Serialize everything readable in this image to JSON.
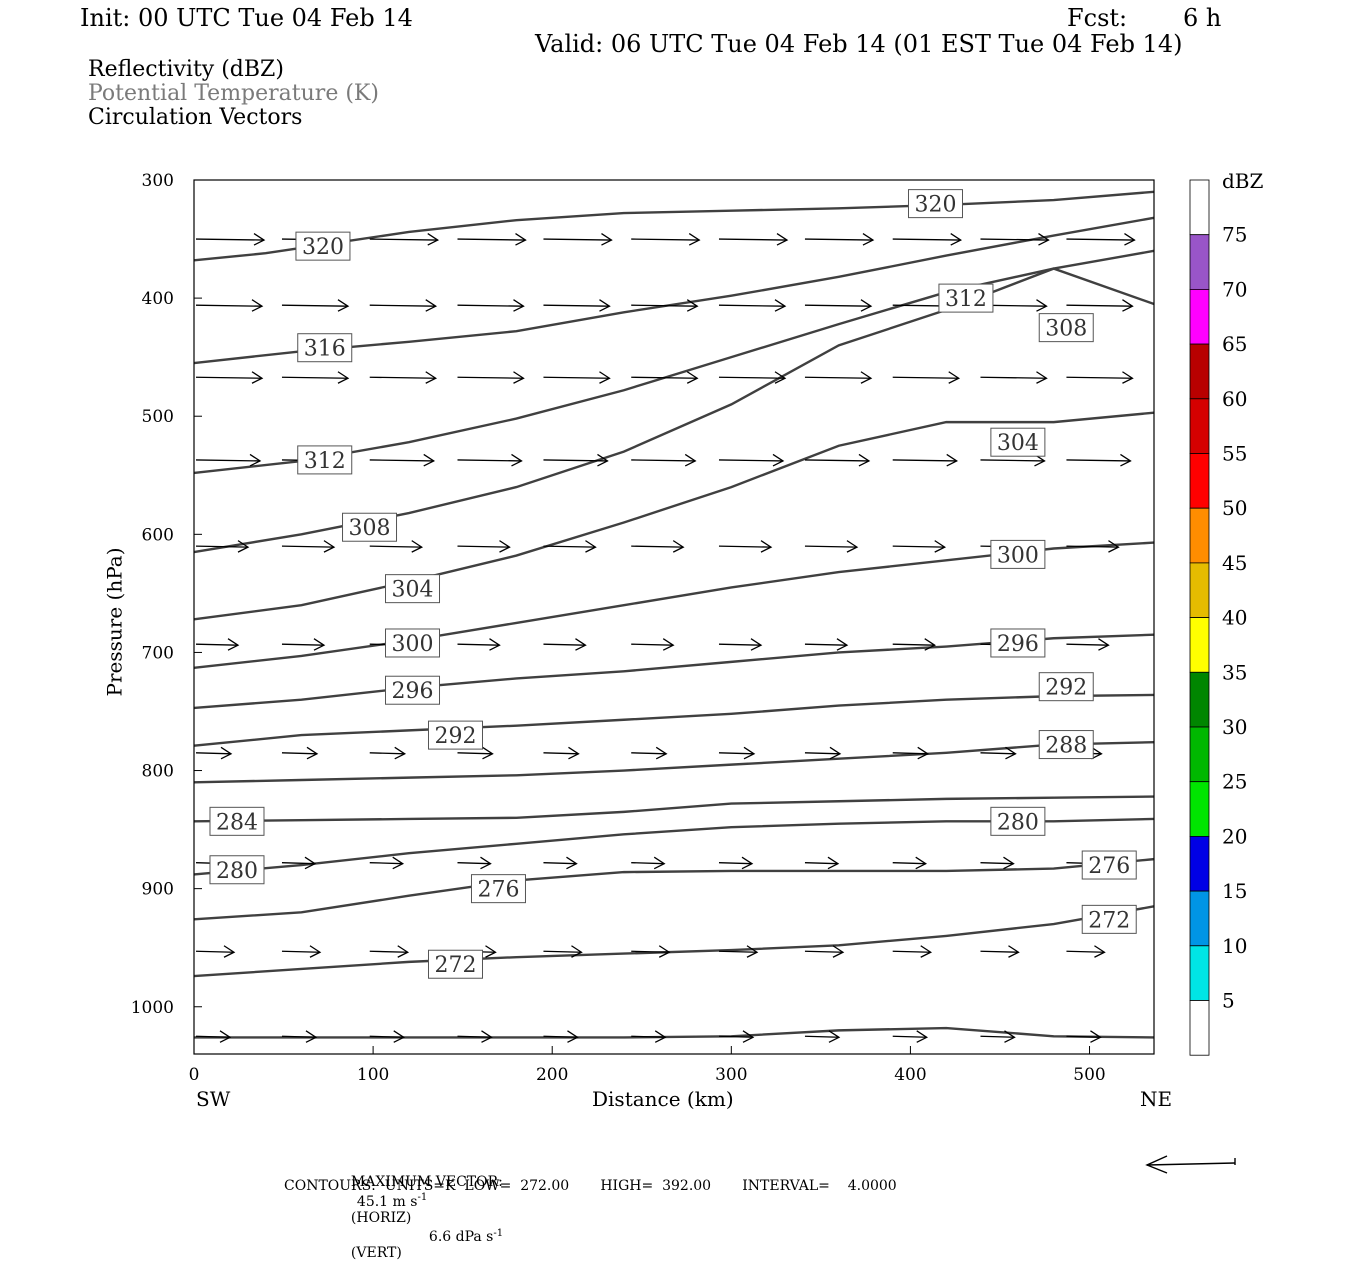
{
  "header": {
    "init": "Init: 00 UTC Tue 04 Feb 14",
    "fcst_label": "Fcst:",
    "fcst_value": "6 h",
    "valid": "Valid: 06 UTC Tue 04 Feb 14 (01 EST Tue 04 Feb 14)"
  },
  "legend": {
    "line1": "Reflectivity (dBZ)",
    "line2": "Potential Temperature (K)",
    "line3": "Circulation Vectors"
  },
  "footer": {
    "max_vector_label": "MAXIMUM VECTOR:",
    "max_vector_horiz": "45.1 m s",
    "max_vector_horiz_sup": "-1",
    "horiz_tag": "(HORIZ)",
    "max_vector_vert": "6.6 dPa s",
    "max_vector_vert_sup": "-1",
    "vert_tag": "(VERT)",
    "contours": "CONTOURS:  UNITS=K  LOW=  272.00       HIGH=  392.00       INTERVAL=    4.0000"
  },
  "chart_data": {
    "type": "cross-section",
    "xlabel": "Distance (km)",
    "ylabel": "Pressure (hPa)",
    "xlim": [
      0,
      536
    ],
    "ylim": [
      300,
      1040
    ],
    "x_ticks": [
      0,
      100,
      200,
      300,
      400,
      500
    ],
    "x_tick_labels": [
      "0",
      "100",
      "200",
      "300",
      "400",
      "500"
    ],
    "y_ticks": [
      300,
      400,
      500,
      600,
      700,
      800,
      900,
      1000
    ],
    "y_tick_labels": [
      "300",
      "400",
      "500",
      "600",
      "700",
      "800",
      "900",
      "1000"
    ],
    "left_end_label": "SW",
    "right_end_label": "NE",
    "isentropes": [
      {
        "theta": "320",
        "x": [
          0,
          60,
          120,
          180,
          240,
          300,
          360,
          420,
          480,
          536
        ],
        "p": [
          314,
          314,
          314,
          314,
          314,
          314,
          314,
          314,
          314,
          314
        ]
      }
    ],
    "contour_lines": [
      {
        "x": [
          0,
          40,
          80,
          120,
          180,
          240,
          300,
          360,
          420,
          480,
          536
        ],
        "p": [
          368,
          362,
          353,
          344,
          334,
          328,
          326,
          324,
          321,
          317,
          310
        ]
      },
      {
        "x": [
          0,
          60,
          120,
          180,
          240,
          300,
          360,
          420,
          480,
          536
        ],
        "p": [
          455,
          445,
          437,
          428,
          412,
          398,
          382,
          364,
          347,
          332
        ]
      },
      {
        "x": [
          0,
          60,
          120,
          180,
          240,
          300,
          360,
          420,
          480,
          536
        ],
        "p": [
          548,
          538,
          522,
          502,
          478,
          450,
          422,
          395,
          375,
          360
        ]
      },
      {
        "x": [
          0,
          60,
          120,
          180,
          240,
          300,
          360,
          420,
          480,
          536
        ],
        "p": [
          615,
          600,
          582,
          560,
          530,
          490,
          440,
          410,
          375,
          405
        ]
      },
      {
        "x": [
          0,
          60,
          120,
          180,
          240,
          300,
          360,
          420,
          480,
          536
        ],
        "p": [
          672,
          660,
          640,
          618,
          590,
          560,
          525,
          505,
          505,
          497
        ]
      },
      {
        "x": [
          0,
          60,
          120,
          180,
          240,
          300,
          360,
          420,
          480,
          536
        ],
        "p": [
          713,
          703,
          690,
          675,
          660,
          645,
          632,
          622,
          612,
          607
        ]
      },
      {
        "x": [
          0,
          60,
          120,
          180,
          240,
          300,
          360,
          420,
          480,
          536
        ],
        "p": [
          747,
          740,
          730,
          722,
          716,
          708,
          700,
          695,
          688,
          685
        ]
      },
      {
        "x": [
          0,
          60,
          120,
          180,
          240,
          300,
          360,
          420,
          480,
          536
        ],
        "p": [
          779,
          770,
          766,
          762,
          757,
          752,
          745,
          740,
          737,
          736
        ]
      },
      {
        "x": [
          0,
          60,
          120,
          180,
          240,
          300,
          360,
          420,
          480,
          536
        ],
        "p": [
          810,
          808,
          806,
          804,
          800,
          795,
          790,
          785,
          778,
          776
        ]
      },
      {
        "x": [
          0,
          60,
          120,
          180,
          240,
          300,
          360,
          420,
          480,
          536
        ],
        "p": [
          843,
          842,
          841,
          840,
          835,
          828,
          826,
          824,
          823,
          822
        ]
      },
      {
        "x": [
          0,
          60,
          120,
          180,
          240,
          300,
          360,
          420,
          480,
          536
        ],
        "p": [
          888,
          880,
          870,
          862,
          854,
          848,
          845,
          843,
          843,
          841
        ]
      },
      {
        "x": [
          0,
          60,
          120,
          180,
          240,
          300,
          360,
          420,
          480,
          536
        ],
        "p": [
          926,
          920,
          906,
          893,
          886,
          885,
          885,
          885,
          883,
          875
        ]
      },
      {
        "x": [
          0,
          60,
          120,
          180,
          240,
          300,
          360,
          420,
          480,
          536
        ],
        "p": [
          974,
          968,
          962,
          958,
          955,
          952,
          948,
          940,
          930,
          915
        ]
      },
      {
        "x": [
          0,
          60,
          120,
          180,
          240,
          300,
          360,
          420,
          480,
          536
        ],
        "p": [
          1026,
          1026,
          1026,
          1026,
          1026,
          1025,
          1020,
          1018,
          1025,
          1026
        ]
      }
    ],
    "contour_labels": [
      {
        "text": "320",
        "x": 72,
        "p": 356
      },
      {
        "text": "320",
        "x": 414,
        "p": 320
      },
      {
        "text": "316",
        "x": 73,
        "p": 442
      },
      {
        "text": "312",
        "x": 431,
        "p": 400
      },
      {
        "text": "312",
        "x": 73,
        "p": 537
      },
      {
        "text": "308",
        "x": 487,
        "p": 425
      },
      {
        "text": "308",
        "x": 98,
        "p": 594
      },
      {
        "text": "304",
        "x": 460,
        "p": 522
      },
      {
        "text": "304",
        "x": 122,
        "p": 646
      },
      {
        "text": "300",
        "x": 460,
        "p": 617
      },
      {
        "text": "300",
        "x": 122,
        "p": 692
      },
      {
        "text": "296",
        "x": 460,
        "p": 692
      },
      {
        "text": "296",
        "x": 122,
        "p": 732
      },
      {
        "text": "292",
        "x": 487,
        "p": 729
      },
      {
        "text": "292",
        "x": 146,
        "p": 770
      },
      {
        "text": "288",
        "x": 487,
        "p": 778
      },
      {
        "text": "284",
        "x": 24,
        "p": 843
      },
      {
        "text": "280",
        "x": 460,
        "p": 843
      },
      {
        "text": "280",
        "x": 24,
        "p": 884
      },
      {
        "text": "276",
        "x": 511,
        "p": 880
      },
      {
        "text": "276",
        "x": 170,
        "p": 900
      },
      {
        "text": "272",
        "x": 511,
        "p": 926
      },
      {
        "text": "272",
        "x": 146,
        "p": 964
      }
    ],
    "vector_rows": [
      {
        "p": 350,
        "len": 40
      },
      {
        "p": 406,
        "len": 38
      },
      {
        "p": 467,
        "len": 38
      },
      {
        "p": 537,
        "len": 36
      },
      {
        "p": 610,
        "len": 24
      },
      {
        "p": 693,
        "len": 14
      },
      {
        "p": 785,
        "len": 7
      },
      {
        "p": 878,
        "len": 5
      },
      {
        "p": 953,
        "len": 10
      },
      {
        "p": 1025,
        "len": 6
      }
    ],
    "vector_x": [
      0,
      48,
      97,
      146,
      194,
      243,
      292,
      340,
      389,
      438,
      486
    ],
    "colorbar": {
      "unit": "dBZ",
      "labels": [
        "5",
        "10",
        "15",
        "20",
        "25",
        "30",
        "35",
        "40",
        "45",
        "50",
        "55",
        "60",
        "65",
        "70",
        "75"
      ],
      "colors": [
        "#ffffff",
        "#00e5e5",
        "#0095e5",
        "#0000e5",
        "#00e500",
        "#00b800",
        "#008600",
        "#ffff00",
        "#e5bc00",
        "#ff8d00",
        "#ff0000",
        "#d50000",
        "#b80000",
        "#ff00ff",
        "#9955c8",
        "#ffffff"
      ]
    }
  }
}
